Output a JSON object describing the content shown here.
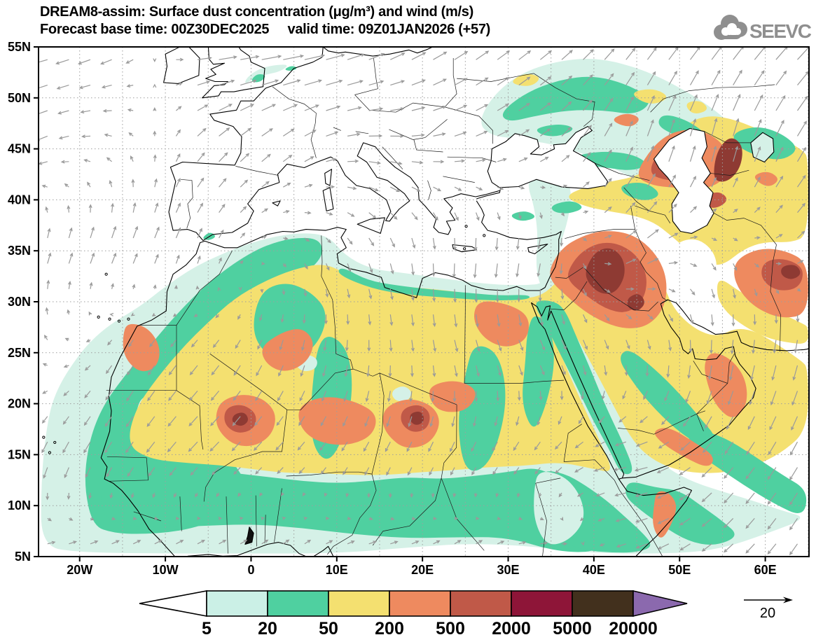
{
  "header": {
    "title_line1": "DREAM8-assim: Surface dust concentration (μg/m³) and wind (m/s)",
    "title_line2": "Forecast base time: 00Z30DEC2025     valid time: 09Z01JAN2026 (+57)",
    "logo_text": "SEEVCCC"
  },
  "chart_data": {
    "type": "heatmap",
    "model": "DREAM8-assim",
    "variable": "Surface dust concentration",
    "units": "μg/m³",
    "wind_units": "m/s",
    "forecast_base_time": "00Z30DEC2025",
    "valid_time": "09Z01JAN2026",
    "forecast_lead_hours": 57,
    "map_extent": {
      "lon_min": -24.8,
      "lon_max": 65.1,
      "lat_min": 5,
      "lat_max": 55
    },
    "grid_interval_deg": 5,
    "x_ticks": [
      {
        "label": "20W",
        "lon": -20
      },
      {
        "label": "10W",
        "lon": -10
      },
      {
        "label": "0",
        "lon": 0
      },
      {
        "label": "10E",
        "lon": 10
      },
      {
        "label": "20E",
        "lon": 20
      },
      {
        "label": "30E",
        "lon": 30
      },
      {
        "label": "40E",
        "lon": 40
      },
      {
        "label": "50E",
        "lon": 50
      },
      {
        "label": "60E",
        "lon": 60
      }
    ],
    "y_ticks": [
      {
        "label": "55N",
        "lat": 55
      },
      {
        "label": "50N",
        "lat": 50
      },
      {
        "label": "45N",
        "lat": 45
      },
      {
        "label": "40N",
        "lat": 40
      },
      {
        "label": "35N",
        "lat": 35
      },
      {
        "label": "30N",
        "lat": 30
      },
      {
        "label": "25N",
        "lat": 25
      },
      {
        "label": "20N",
        "lat": 20
      },
      {
        "label": "15N",
        "lat": 15
      },
      {
        "label": "10N",
        "lat": 10
      },
      {
        "label": "5N",
        "lat": 5
      }
    ],
    "colorbar": {
      "levels": [
        "5",
        "20",
        "50",
        "200",
        "500",
        "2000",
        "5000",
        "20000"
      ],
      "colors": [
        "#ffffff",
        "#cbf0e6",
        "#4fd0a0",
        "#f4e070",
        "#ee8a5f",
        "#c05948",
        "#8e1538",
        "#42301d",
        "#8b69ae"
      ]
    },
    "wind_reference": {
      "label": "20",
      "value": 20
    },
    "palette": {
      "c5": "#d5f1e7",
      "c20": "#4fd0a0",
      "c50": "#f4e070",
      "c200": "#ee8a5f",
      "c500": "#c05948",
      "c2000": "#8e3a33",
      "white": "#ffffff"
    },
    "dust_regions": [
      {
        "id": "cyan-africa-atlantic",
        "level": "5-20"
      },
      {
        "id": "cyan-east-europe",
        "level": "5-20"
      },
      {
        "id": "cyan-anatolia-band",
        "level": "5-20"
      },
      {
        "id": "cyan-uk-patch",
        "level": "5-20"
      },
      {
        "id": "teal-west-africa",
        "level": "20-50"
      },
      {
        "id": "teal-sahel-band",
        "level": "20-50"
      },
      {
        "id": "teal-horn",
        "level": "20-50"
      },
      {
        "id": "teal-somalia-band",
        "level": "20-50"
      },
      {
        "id": "teal-ne-europe",
        "level": "20-50"
      },
      {
        "id": "teal-azov",
        "level": "20-50"
      },
      {
        "id": "teal-uk-spot",
        "level": "20-50"
      },
      {
        "id": "teal-holland-spot",
        "level": "20-50"
      },
      {
        "id": "teal-spain-spot",
        "level": "20-50"
      },
      {
        "id": "cyan-mauritania-pocket",
        "level": "5-20"
      },
      {
        "id": "yellow-sahara-arabia",
        "level": "50-200"
      },
      {
        "id": "yellow-mideast-caspian",
        "level": "50-200"
      },
      {
        "id": "yellow-iran-south",
        "level": "50-200"
      },
      {
        "id": "yellow-patch-ua1",
        "level": "50-200"
      },
      {
        "id": "yellow-patch-ru1",
        "level": "50-200"
      },
      {
        "id": "yellow-patch-ru2",
        "level": "50-200"
      },
      {
        "id": "teal-algeria-patch",
        "level": "20-50"
      },
      {
        "id": "teal-algeria-column",
        "level": "20-50"
      },
      {
        "id": "teal-sudan-column",
        "level": "20-50"
      },
      {
        "id": "teal-egypt-column",
        "level": "20-50"
      },
      {
        "id": "teal-redsea-band",
        "level": "20-50"
      },
      {
        "id": "teal-arabia-diag",
        "level": "20-50"
      },
      {
        "id": "teal-arabiansea-band",
        "level": "20-50"
      },
      {
        "id": "teal-libya-coast",
        "level": "20-50"
      },
      {
        "id": "teal-volga",
        "level": "20-50"
      },
      {
        "id": "teal-aral",
        "level": "20-50"
      },
      {
        "id": "teal-caucasus",
        "level": "20-50"
      },
      {
        "id": "teal-armenia",
        "level": "20-50"
      },
      {
        "id": "teal-turkey-spot1",
        "level": "20-50"
      },
      {
        "id": "teal-turkey-spot2",
        "level": "20-50"
      },
      {
        "id": "cyan-sahara-pocket1",
        "level": "5-20"
      },
      {
        "id": "cyan-sahara-pocket2",
        "level": "5-20"
      },
      {
        "id": "cyan-ethiopia-pocket",
        "level": "5-20"
      },
      {
        "id": "white-zagros-gap",
        "level": "<5"
      },
      {
        "id": "orange-wsahara-coast",
        "level": "200-500"
      },
      {
        "id": "orange-mali",
        "level": "200-500"
      },
      {
        "id": "orange-algeria-arm",
        "level": "200-500"
      },
      {
        "id": "orange-niger",
        "level": "200-500"
      },
      {
        "id": "orange-chad",
        "level": "200-500"
      },
      {
        "id": "orange-sudan-ne",
        "level": "200-500"
      },
      {
        "id": "orange-egypt",
        "level": "200-500"
      },
      {
        "id": "orange-middle-east",
        "level": "200-500"
      },
      {
        "id": "orange-caspian",
        "level": "200-500"
      },
      {
        "id": "orange-se-iran",
        "level": "200-500"
      },
      {
        "id": "orange-oman-coast",
        "level": "200-500"
      },
      {
        "id": "orange-arabia-south",
        "level": "200-500"
      },
      {
        "id": "orange-somalia-coast",
        "level": "200-500"
      },
      {
        "id": "orange-ru-spot1",
        "level": "200-500"
      },
      {
        "id": "orange-ru-spot2",
        "level": "200-500"
      },
      {
        "id": "red-middle-east-core",
        "level": "500-2000"
      },
      {
        "id": "red-caspian-core",
        "level": "500-2000"
      },
      {
        "id": "red-mali-core",
        "level": "500-2000"
      },
      {
        "id": "red-chad-core",
        "level": "500-2000"
      },
      {
        "id": "red-se-iran-core",
        "level": "500-2000"
      },
      {
        "id": "red-turkmen-spot",
        "level": "500-2000"
      },
      {
        "id": "maroon-syria-core",
        "level": "2000-5000"
      },
      {
        "id": "maroon-iraq-spot",
        "level": "2000-5000"
      },
      {
        "id": "maroon-kazakh-core",
        "level": "2000-5000"
      },
      {
        "id": "maroon-mali-spot",
        "level": "2000-5000"
      },
      {
        "id": "maroon-chad-spot",
        "level": "2000-5000"
      },
      {
        "id": "maroon-se-iran-spot",
        "level": "2000-5000"
      }
    ],
    "wind_field": {
      "lons": [
        -25,
        -15,
        -5,
        5,
        15,
        25,
        35,
        45,
        55,
        65
      ],
      "lats": [
        55,
        45,
        35,
        25,
        15,
        5
      ],
      "u": [
        [
          -8,
          -6,
          10,
          12,
          8,
          7,
          6,
          5,
          6,
          7
        ],
        [
          -6,
          -3,
          5,
          5,
          7,
          6,
          5,
          3,
          2,
          5
        ],
        [
          2,
          3,
          2,
          2,
          2,
          -1,
          -2,
          7,
          2,
          4
        ],
        [
          -2,
          -3,
          -4,
          -2,
          0,
          2,
          3,
          1,
          -1,
          -2
        ],
        [
          -3,
          -4,
          -5,
          -4,
          -3,
          -3,
          -4,
          -7,
          -5,
          -4
        ],
        [
          5,
          5,
          5,
          4,
          5,
          4,
          5,
          -6,
          -5,
          -4
        ]
      ],
      "v": [
        [
          -2,
          -3,
          1,
          2,
          4,
          5,
          5,
          6,
          7,
          7
        ],
        [
          -3,
          2,
          5,
          4,
          -1,
          2,
          4,
          9,
          10,
          8
        ],
        [
          6,
          7,
          5,
          -2,
          -5,
          -8,
          -7,
          5,
          -4,
          4
        ],
        [
          3,
          -5,
          -5,
          -6,
          -6,
          -6,
          -5,
          -6,
          -8,
          -8
        ],
        [
          -7,
          -6,
          -5,
          -4,
          -5,
          -5,
          -4,
          -1,
          -6,
          -7
        ],
        [
          2,
          3,
          3,
          3,
          2,
          3,
          1,
          -2,
          -4,
          -6
        ]
      ]
    }
  }
}
